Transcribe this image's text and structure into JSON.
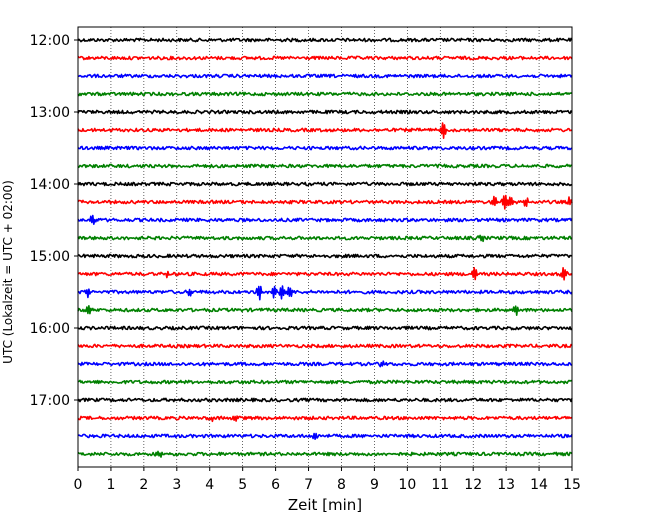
{
  "chart_data": {
    "type": "line",
    "title": "",
    "xlabel": "Zeit  [min]",
    "ylabel": "UTC (Lokalzeit = UTC + 02:00)",
    "xlim": [
      0,
      15
    ],
    "x_ticks": [
      0,
      1,
      2,
      3,
      4,
      5,
      6,
      7,
      8,
      9,
      10,
      11,
      12,
      13,
      14,
      15
    ],
    "y_tick_labels": [
      "12:00",
      "13:00",
      "14:00",
      "15:00",
      "16:00",
      "17:00"
    ],
    "grid": "vertical dotted",
    "trace_interval_min": 15,
    "series": [
      {
        "start": "12:00",
        "color": "#000000",
        "events": []
      },
      {
        "start": "12:15",
        "color": "#ff0000",
        "events": []
      },
      {
        "start": "12:30",
        "color": "#0000ff",
        "events": []
      },
      {
        "start": "12:45",
        "color": "#008000",
        "events": []
      },
      {
        "start": "13:00",
        "color": "#000000",
        "events": []
      },
      {
        "start": "13:15",
        "color": "#ff0000",
        "events": [
          {
            "t": 11.1,
            "amp": 10
          }
        ]
      },
      {
        "start": "13:30",
        "color": "#0000ff",
        "events": []
      },
      {
        "start": "13:45",
        "color": "#008000",
        "events": []
      },
      {
        "start": "14:00",
        "color": "#000000",
        "events": []
      },
      {
        "start": "14:15",
        "color": "#ff0000",
        "events": [
          {
            "t": 12.65,
            "amp": 7
          },
          {
            "t": 12.95,
            "amp": 10
          },
          {
            "t": 13.15,
            "amp": 6
          },
          {
            "t": 13.6,
            "amp": 5
          },
          {
            "t": 14.95,
            "amp": 6
          }
        ]
      },
      {
        "start": "14:30",
        "color": "#0000ff",
        "events": [
          {
            "t": 0.45,
            "amp": 5
          }
        ]
      },
      {
        "start": "14:45",
        "color": "#008000",
        "events": [
          {
            "t": 12.25,
            "amp": 4
          }
        ]
      },
      {
        "start": "15:00",
        "color": "#000000",
        "events": []
      },
      {
        "start": "15:15",
        "color": "#ff0000",
        "events": [
          {
            "t": 2.7,
            "amp": 3
          },
          {
            "t": 12.05,
            "amp": 9
          },
          {
            "t": 14.75,
            "amp": 7
          }
        ]
      },
      {
        "start": "15:30",
        "color": "#0000ff",
        "events": [
          {
            "t": 0.3,
            "amp": 4
          },
          {
            "t": 3.4,
            "amp": 4
          },
          {
            "t": 5.5,
            "amp": 8
          },
          {
            "t": 5.95,
            "amp": 7
          },
          {
            "t": 6.2,
            "amp": 7
          },
          {
            "t": 6.45,
            "amp": 6
          }
        ]
      },
      {
        "start": "15:45",
        "color": "#008000",
        "events": [
          {
            "t": 0.3,
            "amp": 5
          },
          {
            "t": 13.3,
            "amp": 5
          }
        ]
      },
      {
        "start": "16:00",
        "color": "#000000",
        "events": []
      },
      {
        "start": "16:15",
        "color": "#ff0000",
        "events": []
      },
      {
        "start": "16:30",
        "color": "#0000ff",
        "events": [
          {
            "t": 9.25,
            "amp": 3
          }
        ]
      },
      {
        "start": "16:45",
        "color": "#008000",
        "events": []
      },
      {
        "start": "17:00",
        "color": "#000000",
        "events": []
      },
      {
        "start": "17:15",
        "color": "#ff0000",
        "events": [
          {
            "t": 4.05,
            "amp": 3
          },
          {
            "t": 4.8,
            "amp": 4
          }
        ]
      },
      {
        "start": "17:30",
        "color": "#0000ff",
        "events": [
          {
            "t": 7.2,
            "amp": 3
          }
        ]
      },
      {
        "start": "17:45",
        "color": "#008000",
        "events": [
          {
            "t": 2.45,
            "amp": 5
          }
        ]
      }
    ]
  }
}
